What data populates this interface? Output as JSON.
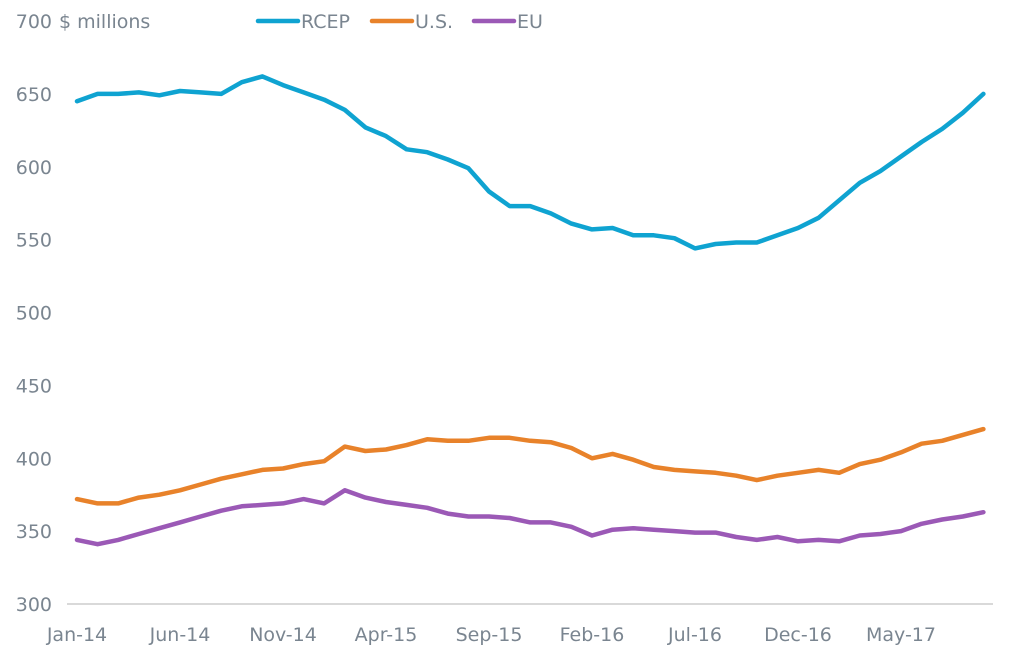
{
  "chart_data": {
    "type": "line",
    "title": "",
    "unit_label": "$ millions",
    "xlabel": "",
    "ylabel": "$ millions",
    "ylim": [
      300,
      700
    ],
    "yticks": [
      300,
      350,
      400,
      450,
      500,
      550,
      600,
      650,
      700
    ],
    "grid": false,
    "legend_position": "top",
    "x": [
      "Jan-14",
      "Feb-14",
      "Mar-14",
      "Apr-14",
      "May-14",
      "Jun-14",
      "Jul-14",
      "Aug-14",
      "Sep-14",
      "Oct-14",
      "Nov-14",
      "Dec-14",
      "Jan-15",
      "Feb-15",
      "Mar-15",
      "Apr-15",
      "May-15",
      "Jun-15",
      "Jul-15",
      "Aug-15",
      "Sep-15",
      "Oct-15",
      "Nov-15",
      "Dec-15",
      "Jan-16",
      "Feb-16",
      "Mar-16",
      "Apr-16",
      "May-16",
      "Jun-16",
      "Jul-16",
      "Aug-16",
      "Sep-16",
      "Oct-16",
      "Nov-16",
      "Dec-16",
      "Jan-17",
      "Feb-17",
      "Mar-17",
      "Apr-17",
      "May-17",
      "Jun-17",
      "Jul-17",
      "Aug-17",
      "Sep-17"
    ],
    "xtick_labels": [
      {
        "index": 0,
        "label": "Jan-14"
      },
      {
        "index": 5,
        "label": "Jun-14"
      },
      {
        "index": 10,
        "label": "Nov-14"
      },
      {
        "index": 15,
        "label": "Apr-15"
      },
      {
        "index": 20,
        "label": "Sep-15"
      },
      {
        "index": 25,
        "label": "Feb-16"
      },
      {
        "index": 30,
        "label": "Jul-16"
      },
      {
        "index": 35,
        "label": "Dec-16"
      },
      {
        "index": 40,
        "label": "May-17"
      }
    ],
    "series": [
      {
        "name": "RCEP",
        "color": "#0fa3d1",
        "values": [
          645,
          650,
          650,
          651,
          649,
          652,
          651,
          650,
          658,
          662,
          656,
          651,
          646,
          639,
          627,
          621,
          612,
          610,
          605,
          599,
          583,
          573,
          573,
          568,
          561,
          557,
          558,
          553,
          553,
          551,
          544,
          547,
          548,
          548,
          553,
          558,
          565,
          577,
          589,
          597,
          607,
          617,
          626,
          637,
          650
        ]
      },
      {
        "name": "U.S.",
        "color": "#e8822a",
        "values": [
          372,
          369,
          369,
          373,
          375,
          378,
          382,
          386,
          389,
          392,
          393,
          396,
          398,
          408,
          405,
          406,
          409,
          413,
          412,
          412,
          414,
          414,
          412,
          411,
          407,
          400,
          403,
          399,
          394,
          392,
          391,
          390,
          388,
          385,
          388,
          390,
          392,
          390,
          396,
          399,
          404,
          410,
          412,
          416,
          420
        ]
      },
      {
        "name": "EU",
        "color": "#9b59b6",
        "values": [
          344,
          341,
          344,
          348,
          352,
          356,
          360,
          364,
          367,
          368,
          369,
          372,
          369,
          378,
          373,
          370,
          368,
          366,
          362,
          360,
          360,
          359,
          356,
          356,
          353,
          347,
          351,
          352,
          351,
          350,
          349,
          349,
          346,
          344,
          346,
          343,
          344,
          343,
          347,
          348,
          350,
          355,
          358,
          360,
          363
        ]
      }
    ]
  }
}
